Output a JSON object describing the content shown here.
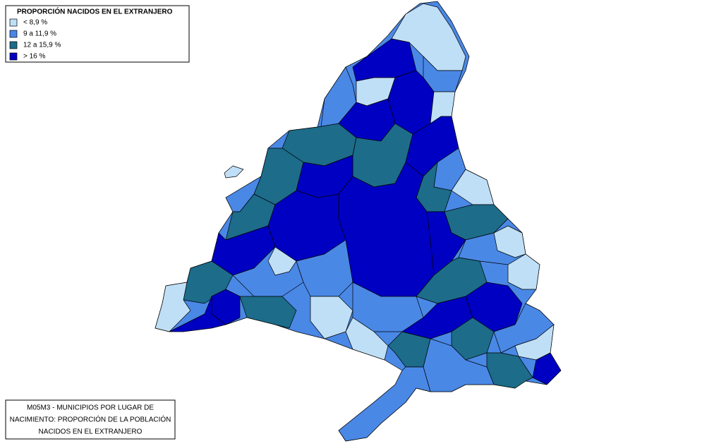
{
  "legend": {
    "title": "PROPORCIÓN  NACIDOS EN EL EXTRANJERO",
    "items": [
      {
        "label": " < 8,9 %",
        "color": "#bfdff7"
      },
      {
        "label": "9 a 11,9 %",
        "color": "#4a88e6"
      },
      {
        "label": "12 a 15,9 %",
        "color": "#1c6c8a"
      },
      {
        "label": "> 16 %",
        "color": "#0000c2"
      }
    ]
  },
  "caption": {
    "lines": [
      "M05M3 - MUNICIPIOS POR LUGAR DE",
      "NACIMIENTO: PROPORCIÓN DE LA POBLACIÓN",
      "NACIDOS EN EL EXTRANJERO"
    ]
  }
}
